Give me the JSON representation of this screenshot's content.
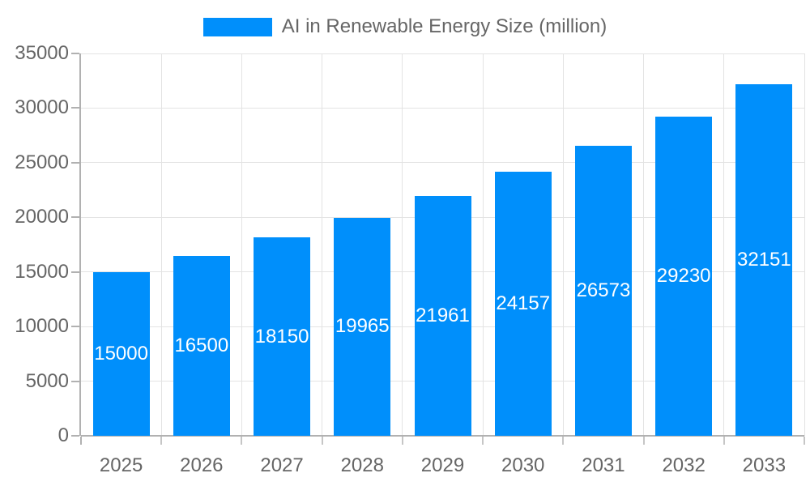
{
  "legend": {
    "label": "AI in Renewable Energy Size (million)"
  },
  "chart_data": {
    "type": "bar",
    "title": "",
    "xlabel": "",
    "ylabel": "",
    "legend_label": "AI in Renewable Energy Size (million)",
    "legend_position": "top",
    "grid": true,
    "categories": [
      "2025",
      "2026",
      "2027",
      "2028",
      "2029",
      "2030",
      "2031",
      "2032",
      "2033"
    ],
    "series": [
      {
        "name": "AI in Renewable Energy Size (million)",
        "values": [
          15000,
          16500,
          18150,
          19965,
          21961,
          24157,
          26573,
          29230,
          32151
        ]
      }
    ],
    "bar_value_labels": [
      "15000",
      "16500",
      "18150",
      "19965",
      "21961",
      "24157",
      "26573",
      "29230",
      "32151"
    ],
    "ylim": [
      0,
      35000
    ],
    "yticks": [
      0,
      5000,
      10000,
      15000,
      20000,
      25000,
      30000,
      35000
    ],
    "colors": {
      "bar": "#008ffb",
      "bar_value_text": "#ffffff",
      "axis_text": "#666666",
      "gridline": "#e3e3e3",
      "axis_line": "#b1b1b1",
      "tick": "#c6c6c6",
      "background": "#ffffff"
    }
  }
}
